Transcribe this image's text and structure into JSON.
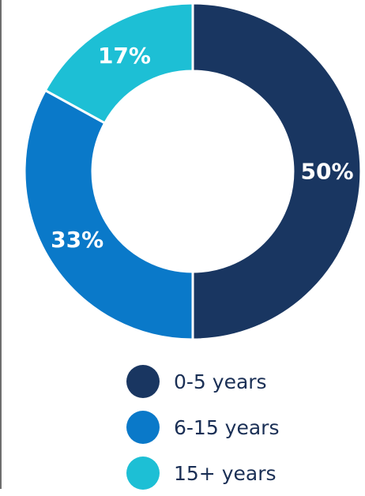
{
  "chart_data": {
    "type": "pie",
    "title": "",
    "categories": [
      "0-5 years",
      "6-15 years",
      "15+ years"
    ],
    "values": [
      50,
      33,
      17
    ],
    "value_labels": [
      "50%",
      "33%",
      "17%"
    ],
    "colors": [
      "#193661",
      "#0a79c9",
      "#1dbfd5"
    ],
    "donut": true,
    "legend_position": "bottom"
  }
}
